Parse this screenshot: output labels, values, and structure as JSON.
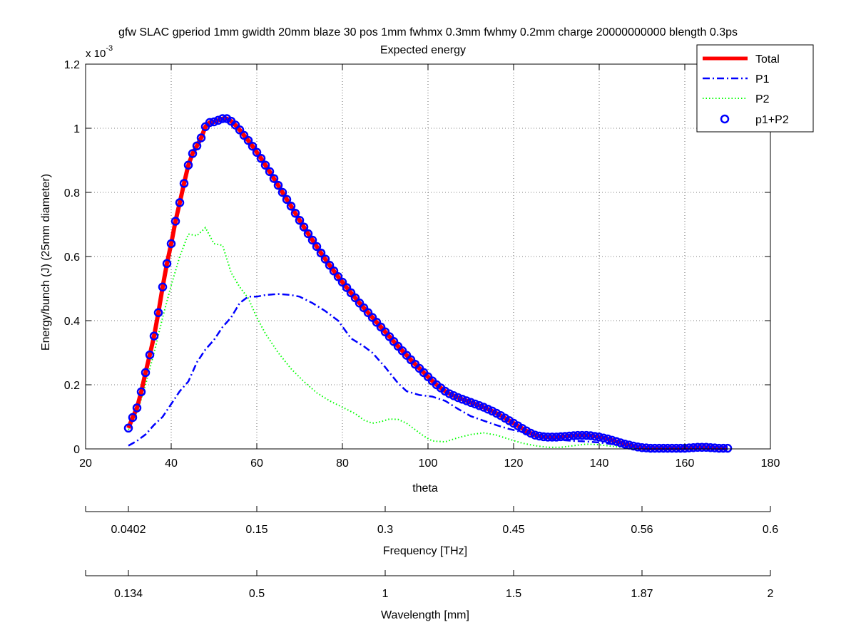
{
  "chart_data": {
    "type": "line",
    "title": "gfw SLAC gperiod 1mm gwidth 20mm blaze 30 pos 1mm fwhmx 0.3mm fwhmy 0.2mm charge 20000000000 blength 0.3ps",
    "subtitle": "Expected energy",
    "xlabel": "theta",
    "ylabel": "Energy/bunch (J) (25mm diameter)",
    "y_multiplier": "x 10",
    "y_multiplier_exp": "-3",
    "xlim": [
      20,
      180
    ],
    "ylim": [
      0,
      1.2
    ],
    "xticks": [
      20,
      40,
      60,
      80,
      100,
      120,
      140,
      160,
      180
    ],
    "yticks": [
      0,
      0.2,
      0.4,
      0.6,
      0.8,
      1,
      1.2
    ],
    "grid": "dotted",
    "legend_position": "top-right",
    "series": [
      {
        "name": "Total",
        "color": "#ff0000",
        "style": "solid-thick",
        "points": [
          [
            30,
            0.065
          ],
          [
            31,
            0.098
          ],
          [
            32,
            0.128
          ],
          [
            33,
            0.178
          ],
          [
            34,
            0.238
          ],
          [
            35,
            0.293
          ],
          [
            36,
            0.352
          ],
          [
            37,
            0.425
          ],
          [
            38,
            0.505
          ],
          [
            39,
            0.578
          ],
          [
            40,
            0.64
          ],
          [
            41,
            0.71
          ],
          [
            42,
            0.768
          ],
          [
            43,
            0.828
          ],
          [
            44,
            0.885
          ],
          [
            45,
            0.921
          ],
          [
            46,
            0.945
          ],
          [
            47,
            0.97
          ],
          [
            48,
            1.005
          ],
          [
            49,
            1.018
          ],
          [
            50,
            1.02
          ],
          [
            51,
            1.025
          ],
          [
            52,
            1.03
          ],
          [
            53,
            1.03
          ],
          [
            54,
            1.022
          ],
          [
            55,
            1.01
          ],
          [
            56,
            0.995
          ],
          [
            57,
            0.978
          ],
          [
            58,
            0.962
          ],
          [
            59,
            0.944
          ],
          [
            60,
            0.925
          ],
          [
            61,
            0.906
          ],
          [
            62,
            0.885
          ],
          [
            63,
            0.865
          ],
          [
            64,
            0.843
          ],
          [
            65,
            0.822
          ],
          [
            66,
            0.8
          ],
          [
            67,
            0.778
          ],
          [
            68,
            0.757
          ],
          [
            69,
            0.735
          ],
          [
            70,
            0.713
          ],
          [
            71,
            0.692
          ],
          [
            72,
            0.671
          ],
          [
            73,
            0.651
          ],
          [
            74,
            0.631
          ],
          [
            75,
            0.611
          ],
          [
            76,
            0.592
          ],
          [
            77,
            0.573
          ],
          [
            78,
            0.555
          ],
          [
            79,
            0.537
          ],
          [
            80,
            0.52
          ],
          [
            81,
            0.503
          ],
          [
            82,
            0.487
          ],
          [
            83,
            0.471
          ],
          [
            84,
            0.455
          ],
          [
            85,
            0.44
          ],
          [
            86,
            0.425
          ],
          [
            87,
            0.41
          ],
          [
            88,
            0.395
          ],
          [
            89,
            0.38
          ],
          [
            90,
            0.365
          ],
          [
            91,
            0.35
          ],
          [
            92,
            0.335
          ],
          [
            93,
            0.32
          ],
          [
            94,
            0.306
          ],
          [
            95,
            0.292
          ],
          [
            96,
            0.278
          ],
          [
            97,
            0.264
          ],
          [
            98,
            0.251
          ],
          [
            99,
            0.238
          ],
          [
            100,
            0.225
          ],
          [
            101,
            0.212
          ],
          [
            102,
            0.2
          ],
          [
            103,
            0.19
          ],
          [
            104,
            0.18
          ],
          [
            105,
            0.172
          ],
          [
            106,
            0.166
          ],
          [
            107,
            0.16
          ],
          [
            108,
            0.155
          ],
          [
            109,
            0.15
          ],
          [
            110,
            0.145
          ],
          [
            111,
            0.14
          ],
          [
            112,
            0.135
          ],
          [
            113,
            0.13
          ],
          [
            114,
            0.124
          ],
          [
            115,
            0.118
          ],
          [
            116,
            0.111
          ],
          [
            117,
            0.104
          ],
          [
            118,
            0.096
          ],
          [
            119,
            0.088
          ],
          [
            120,
            0.08
          ],
          [
            121,
            0.072
          ],
          [
            122,
            0.064
          ],
          [
            123,
            0.056
          ],
          [
            124,
            0.049
          ],
          [
            125,
            0.043
          ],
          [
            126,
            0.04
          ],
          [
            127,
            0.038
          ],
          [
            128,
            0.037
          ],
          [
            129,
            0.037
          ],
          [
            130,
            0.037
          ],
          [
            131,
            0.038
          ],
          [
            132,
            0.039
          ],
          [
            133,
            0.04
          ],
          [
            134,
            0.041
          ],
          [
            135,
            0.042
          ],
          [
            136,
            0.042
          ],
          [
            137,
            0.042
          ],
          [
            138,
            0.041
          ],
          [
            139,
            0.039
          ],
          [
            140,
            0.037
          ],
          [
            141,
            0.034
          ],
          [
            142,
            0.031
          ],
          [
            143,
            0.027
          ],
          [
            144,
            0.023
          ],
          [
            145,
            0.019
          ],
          [
            146,
            0.015
          ],
          [
            147,
            0.012
          ],
          [
            148,
            0.009
          ],
          [
            149,
            0.006
          ],
          [
            150,
            0.004
          ],
          [
            151,
            0.003
          ],
          [
            152,
            0.002
          ],
          [
            153,
            0.002
          ],
          [
            154,
            0.002
          ],
          [
            155,
            0.002
          ],
          [
            156,
            0.002
          ],
          [
            157,
            0.002
          ],
          [
            158,
            0.002
          ],
          [
            159,
            0.002
          ],
          [
            160,
            0.002
          ],
          [
            161,
            0.003
          ],
          [
            162,
            0.004
          ],
          [
            163,
            0.005
          ],
          [
            164,
            0.005
          ],
          [
            165,
            0.005
          ],
          [
            166,
            0.004
          ],
          [
            167,
            0.003
          ],
          [
            168,
            0.002
          ],
          [
            169,
            0.002
          ],
          [
            170,
            0.002
          ]
        ]
      },
      {
        "name": "P1",
        "color": "#0000ff",
        "style": "dash-dot",
        "points": [
          [
            30,
            0.01
          ],
          [
            32,
            0.025
          ],
          [
            34,
            0.045
          ],
          [
            36,
            0.075
          ],
          [
            38,
            0.1
          ],
          [
            40,
            0.14
          ],
          [
            42,
            0.18
          ],
          [
            44,
            0.21
          ],
          [
            46,
            0.27
          ],
          [
            48,
            0.31
          ],
          [
            50,
            0.34
          ],
          [
            52,
            0.38
          ],
          [
            54,
            0.41
          ],
          [
            56,
            0.455
          ],
          [
            58,
            0.475
          ],
          [
            60,
            0.475
          ],
          [
            62,
            0.48
          ],
          [
            65,
            0.483
          ],
          [
            68,
            0.48
          ],
          [
            70,
            0.475
          ],
          [
            73,
            0.455
          ],
          [
            76,
            0.43
          ],
          [
            79,
            0.4
          ],
          [
            82,
            0.345
          ],
          [
            85,
            0.32
          ],
          [
            87,
            0.3
          ],
          [
            90,
            0.255
          ],
          [
            93,
            0.205
          ],
          [
            95,
            0.18
          ],
          [
            98,
            0.168
          ],
          [
            101,
            0.163
          ],
          [
            104,
            0.15
          ],
          [
            107,
            0.125
          ],
          [
            110,
            0.102
          ],
          [
            113,
            0.088
          ],
          [
            116,
            0.074
          ],
          [
            119,
            0.062
          ],
          [
            122,
            0.052
          ],
          [
            125,
            0.042
          ],
          [
            128,
            0.034
          ],
          [
            131,
            0.028
          ],
          [
            134,
            0.025
          ],
          [
            137,
            0.023
          ],
          [
            140,
            0.02
          ],
          [
            143,
            0.015
          ],
          [
            146,
            0.01
          ],
          [
            149,
            0.005
          ],
          [
            152,
            0.003
          ],
          [
            155,
            0.002
          ],
          [
            158,
            0.002
          ],
          [
            161,
            0.002
          ],
          [
            164,
            0.002
          ],
          [
            167,
            0.002
          ],
          [
            170,
            0.002
          ]
        ]
      },
      {
        "name": "P2",
        "color": "#00ff00",
        "style": "dotted",
        "points": [
          [
            30,
            0.06
          ],
          [
            32,
            0.11
          ],
          [
            34,
            0.2
          ],
          [
            36,
            0.3
          ],
          [
            38,
            0.41
          ],
          [
            40,
            0.51
          ],
          [
            42,
            0.6
          ],
          [
            44,
            0.67
          ],
          [
            46,
            0.665
          ],
          [
            48,
            0.69
          ],
          [
            50,
            0.64
          ],
          [
            52,
            0.635
          ],
          [
            54,
            0.55
          ],
          [
            56,
            0.505
          ],
          [
            58,
            0.47
          ],
          [
            60,
            0.41
          ],
          [
            62,
            0.36
          ],
          [
            65,
            0.3
          ],
          [
            68,
            0.25
          ],
          [
            71,
            0.21
          ],
          [
            74,
            0.175
          ],
          [
            77,
            0.15
          ],
          [
            80,
            0.13
          ],
          [
            83,
            0.11
          ],
          [
            85,
            0.09
          ],
          [
            87,
            0.08
          ],
          [
            89,
            0.085
          ],
          [
            91,
            0.093
          ],
          [
            93,
            0.092
          ],
          [
            95,
            0.08
          ],
          [
            97,
            0.06
          ],
          [
            99,
            0.04
          ],
          [
            101,
            0.025
          ],
          [
            104,
            0.022
          ],
          [
            107,
            0.035
          ],
          [
            110,
            0.045
          ],
          [
            113,
            0.05
          ],
          [
            116,
            0.043
          ],
          [
            119,
            0.03
          ],
          [
            122,
            0.018
          ],
          [
            125,
            0.01
          ],
          [
            128,
            0.005
          ],
          [
            131,
            0.005
          ],
          [
            134,
            0.01
          ],
          [
            137,
            0.015
          ],
          [
            140,
            0.013
          ],
          [
            143,
            0.008
          ],
          [
            146,
            0.004
          ],
          [
            149,
            0.002
          ],
          [
            152,
            0.002
          ],
          [
            155,
            0.002
          ],
          [
            160,
            0.002
          ],
          [
            165,
            0.002
          ],
          [
            170,
            0.002
          ]
        ]
      },
      {
        "name": "p1+P2",
        "color": "#0000ff",
        "style": "circle-markers",
        "points": "same as Total"
      }
    ],
    "secondary_axes": [
      {
        "label": "Frequency [THz]",
        "ticks": [
          {
            "x": 20,
            "label": ""
          },
          {
            "x": 30,
            "label": "0.0402"
          },
          {
            "x": 60,
            "label": "0.15"
          },
          {
            "x": 90,
            "label": "0.3"
          },
          {
            "x": 120,
            "label": "0.45"
          },
          {
            "x": 150,
            "label": "0.56"
          },
          {
            "x": 180,
            "label": "0.6"
          }
        ]
      },
      {
        "label": "Wavelength [mm]",
        "ticks": [
          {
            "x": 20,
            "label": ""
          },
          {
            "x": 30,
            "label": "0.134"
          },
          {
            "x": 60,
            "label": "0.5"
          },
          {
            "x": 90,
            "label": "1"
          },
          {
            "x": 120,
            "label": "1.5"
          },
          {
            "x": 150,
            "label": "1.87"
          },
          {
            "x": 180,
            "label": "2"
          }
        ]
      }
    ]
  }
}
